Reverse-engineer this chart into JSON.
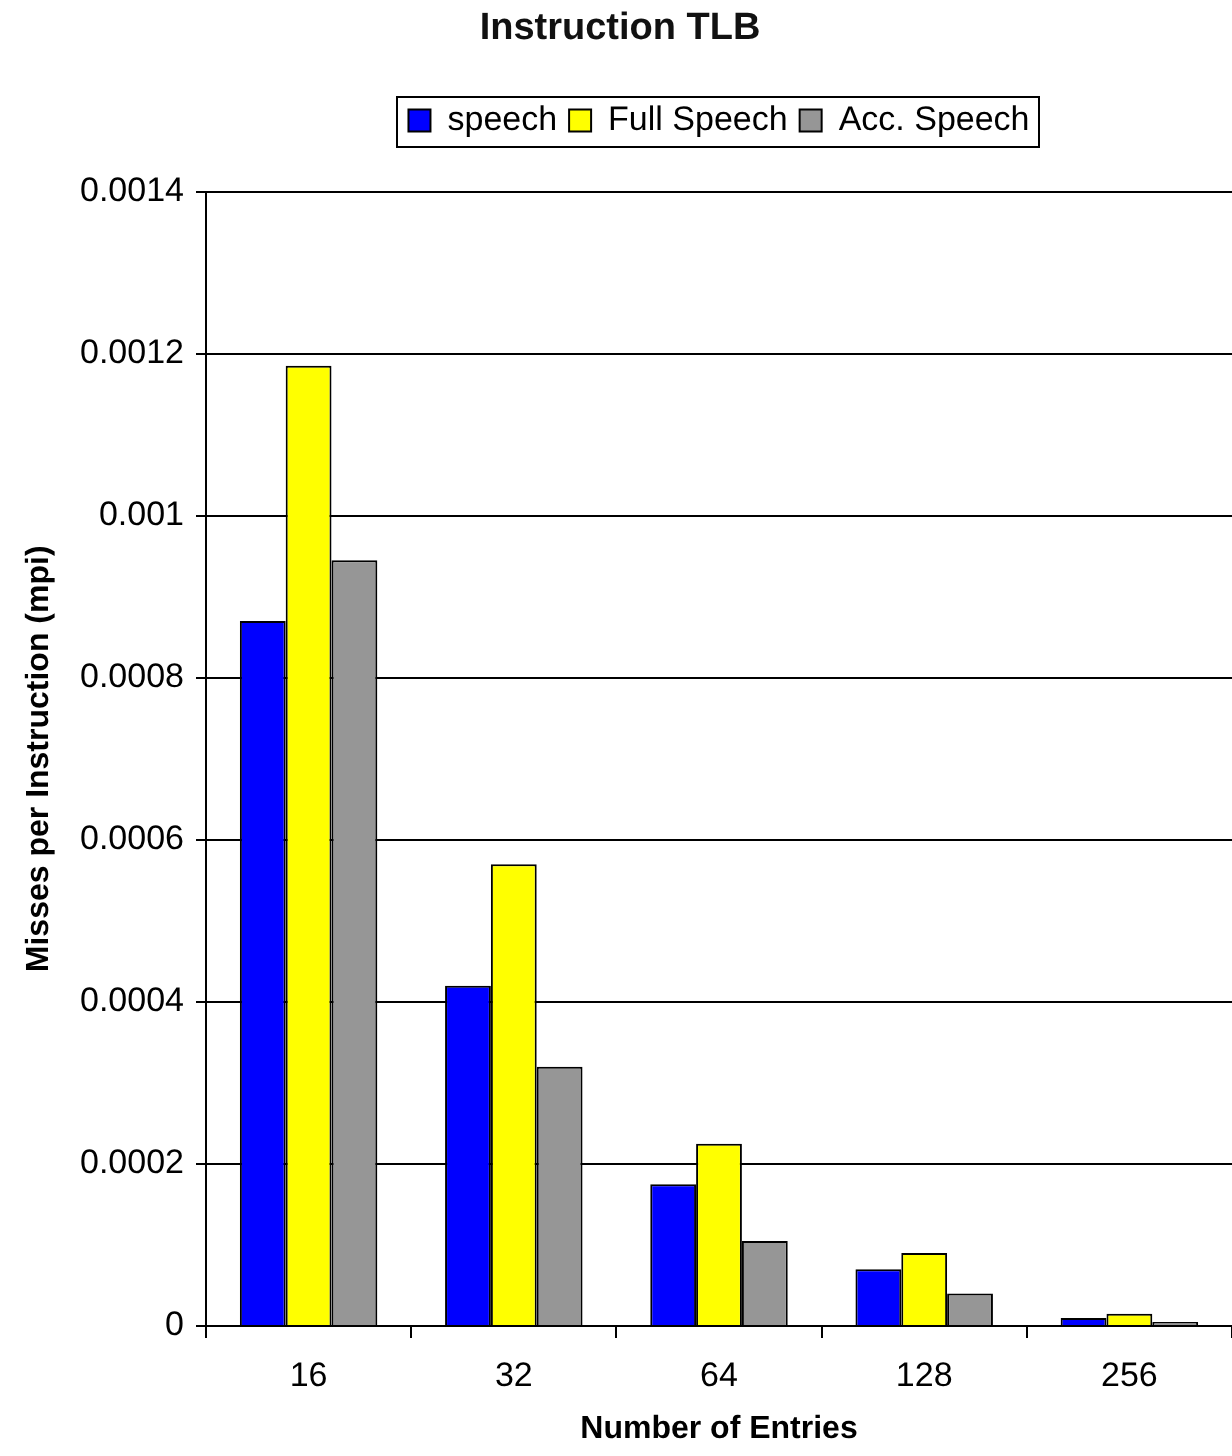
{
  "chart_data": {
    "type": "bar",
    "title": "Instruction TLB",
    "xlabel": "Number of Entries",
    "ylabel": "Misses per Instruction (mpi)",
    "categories": [
      "16",
      "32",
      "64",
      "128",
      "256"
    ],
    "series": [
      {
        "name": "speech",
        "color": "#0000ff",
        "values": [
          0.00087,
          0.00042,
          0.000175,
          7e-05,
          1e-05
        ]
      },
      {
        "name": "Full Speech",
        "color": "#ffff00",
        "values": [
          0.001185,
          0.00057,
          0.000225,
          9e-05,
          1.5e-05
        ]
      },
      {
        "name": "Acc. Speech",
        "color": "#969696",
        "values": [
          0.000945,
          0.00032,
          0.000105,
          4e-05,
          5e-06
        ]
      }
    ],
    "ylim": [
      0,
      0.0014
    ],
    "yticks": [
      0,
      0.0002,
      0.0004,
      0.0006,
      0.0008,
      0.001,
      0.0012,
      0.0014
    ],
    "grid": "y",
    "legend": "top"
  }
}
